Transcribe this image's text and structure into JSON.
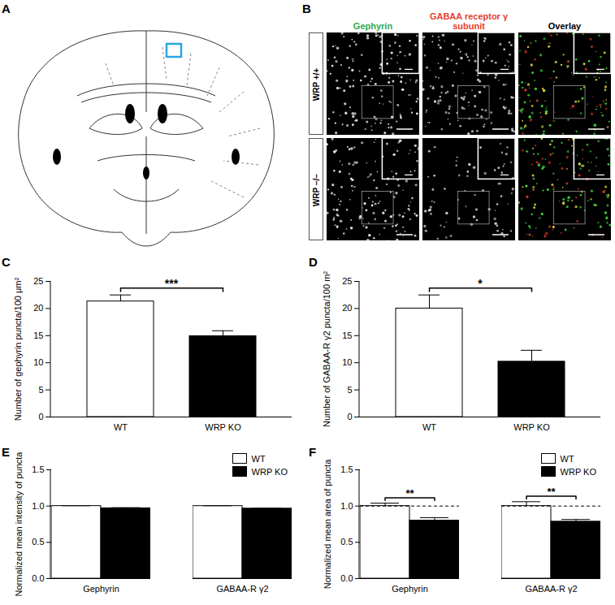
{
  "panel_labels": [
    "A",
    "B",
    "C",
    "D",
    "E",
    "F"
  ],
  "image_panel": {
    "column_headers": [
      {
        "text": "Gephyrin",
        "color": "#2fa84f"
      },
      {
        "text": "GABAA receptor γ subunit",
        "color": "#e5412d"
      },
      {
        "text": "Overlay",
        "color": "#000000"
      }
    ],
    "row_labels": [
      "WRP +/+",
      "WRP −/−"
    ]
  },
  "chart_data": [
    {
      "type": "bar",
      "ylabel": "Number of gephyrin puncta/100 μm²",
      "categories": [
        "WT",
        "WRP KO"
      ],
      "values": [
        21.3,
        14.9
      ],
      "errors": [
        1.2,
        1.0
      ],
      "colors": [
        "#ffffff",
        "#000000"
      ],
      "ylim": [
        0,
        25
      ],
      "yticks": [
        0,
        5,
        10,
        15,
        20,
        25
      ],
      "significance": [
        {
          "categories": [
            "WT",
            "WRP KO"
          ],
          "label": "***"
        }
      ]
    },
    {
      "type": "bar",
      "ylabel": "Number of GABAA-R γ2 puncta/100 m²",
      "categories": [
        "WT",
        "WRP KO"
      ],
      "values": [
        20,
        10.2
      ],
      "errors": [
        2.5,
        2.1
      ],
      "colors": [
        "#ffffff",
        "#000000"
      ],
      "ylim": [
        0,
        25
      ],
      "yticks": [
        0,
        5,
        10,
        15,
        20,
        25
      ],
      "significance": [
        {
          "categories": [
            "WT",
            "WRP KO"
          ],
          "label": "*"
        }
      ]
    },
    {
      "type": "bar",
      "ylabel": "Normalized mean intensity of puncta",
      "categories": [
        "Gephyrin",
        "GABAA-R γ2"
      ],
      "series": [
        {
          "name": "WT",
          "color": "#ffffff",
          "values": [
            1,
            1
          ],
          "errors": [
            0.005,
            0.004
          ]
        },
        {
          "name": "WRP KO",
          "color": "#000000",
          "values": [
            0.97,
            0.965
          ],
          "errors": [
            0.007,
            0.005
          ]
        }
      ],
      "ylim": [
        0,
        1.5
      ],
      "yticks": [
        {
          "value": 0,
          "label": "0.0"
        },
        {
          "value": 0.5,
          "label": "0.5"
        },
        {
          "value": 1,
          "label": "1.0"
        },
        {
          "value": 1.5,
          "label": "1.5"
        }
      ],
      "legend": "top-right"
    },
    {
      "type": "bar",
      "ylabel": "Normalized mean area of puncta",
      "categories": [
        "Gephyrin",
        "GABAA-R γ2"
      ],
      "series": [
        {
          "name": "WT",
          "color": "#ffffff",
          "values": [
            1,
            1
          ],
          "errors": [
            0.04,
            0.06
          ]
        },
        {
          "name": "WRP KO",
          "color": "#000000",
          "values": [
            0.8,
            0.785
          ],
          "errors": [
            0.04,
            0.03
          ]
        }
      ],
      "ylim": [
        0,
        1.5
      ],
      "yticks": [
        {
          "value": 0,
          "label": "0.0"
        },
        {
          "value": 0.5,
          "label": "0.5"
        },
        {
          "value": 1,
          "label": "1.0"
        },
        {
          "value": 1.5,
          "label": "1.5"
        }
      ],
      "reference_value": 1,
      "legend": "top-right",
      "significance": [
        {
          "category": "Gephyrin",
          "series": [
            "WT",
            "WRP KO"
          ],
          "label": "**"
        },
        {
          "category": "GABAA-R γ2",
          "series": [
            "WT",
            "WRP KO"
          ],
          "label": "**"
        }
      ]
    }
  ]
}
